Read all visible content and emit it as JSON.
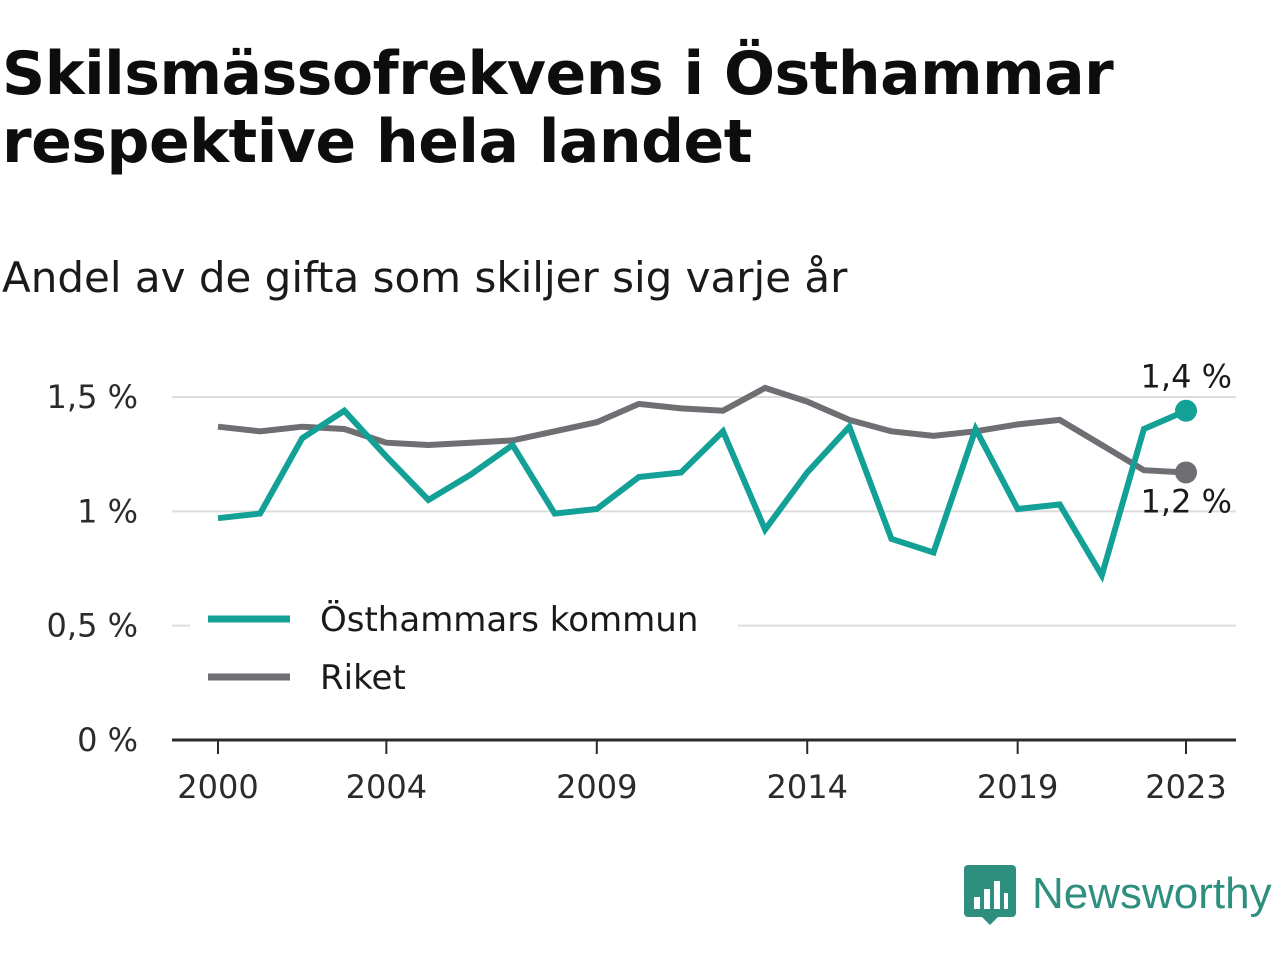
{
  "title": "Skilsmässofrekvens i Östhammar respektive hela landet",
  "subtitle": "Andel av de gifta som skiljer sig varje år",
  "brand": {
    "name": "Newsworthy",
    "icon": "newsworthy-logo-icon",
    "color": "#2f8f7f"
  },
  "chart_data": {
    "type": "line",
    "x": [
      2000,
      2001,
      2002,
      2003,
      2004,
      2005,
      2006,
      2007,
      2008,
      2009,
      2010,
      2011,
      2012,
      2013,
      2014,
      2015,
      2016,
      2017,
      2018,
      2019,
      2020,
      2021,
      2022,
      2023
    ],
    "x_ticks": [
      {
        "value": 2000,
        "label": "2000"
      },
      {
        "value": 2004,
        "label": "2004"
      },
      {
        "value": 2009,
        "label": "2009"
      },
      {
        "value": 2014,
        "label": "2014"
      },
      {
        "value": 2019,
        "label": "2019"
      },
      {
        "value": 2023,
        "label": "2023"
      }
    ],
    "y_ticks": [
      {
        "value": 0,
        "label": "0 %"
      },
      {
        "value": 0.5,
        "label": "0,5 %"
      },
      {
        "value": 1,
        "label": "1 %"
      },
      {
        "value": 1.5,
        "label": "1,5 %"
      }
    ],
    "ylim": [
      0,
      1.6
    ],
    "grid": true,
    "legend_position": "lower-left",
    "series": [
      {
        "name": "Östhammars kommun",
        "color": "#13a096",
        "end_label": "1,4 %",
        "values": [
          0.97,
          0.99,
          1.32,
          1.44,
          1.24,
          1.05,
          1.16,
          1.29,
          0.99,
          1.01,
          1.15,
          1.17,
          1.35,
          0.92,
          1.17,
          1.37,
          0.88,
          0.82,
          1.36,
          1.01,
          1.03,
          0.72,
          1.36,
          1.44
        ]
      },
      {
        "name": "Riket",
        "color": "#6f6e73",
        "end_label": "1,2 %",
        "values": [
          1.37,
          1.35,
          1.37,
          1.36,
          1.3,
          1.29,
          1.3,
          1.31,
          1.35,
          1.39,
          1.47,
          1.45,
          1.44,
          1.54,
          1.48,
          1.4,
          1.35,
          1.33,
          1.35,
          1.38,
          1.4,
          1.29,
          1.18,
          1.17
        ]
      }
    ]
  }
}
